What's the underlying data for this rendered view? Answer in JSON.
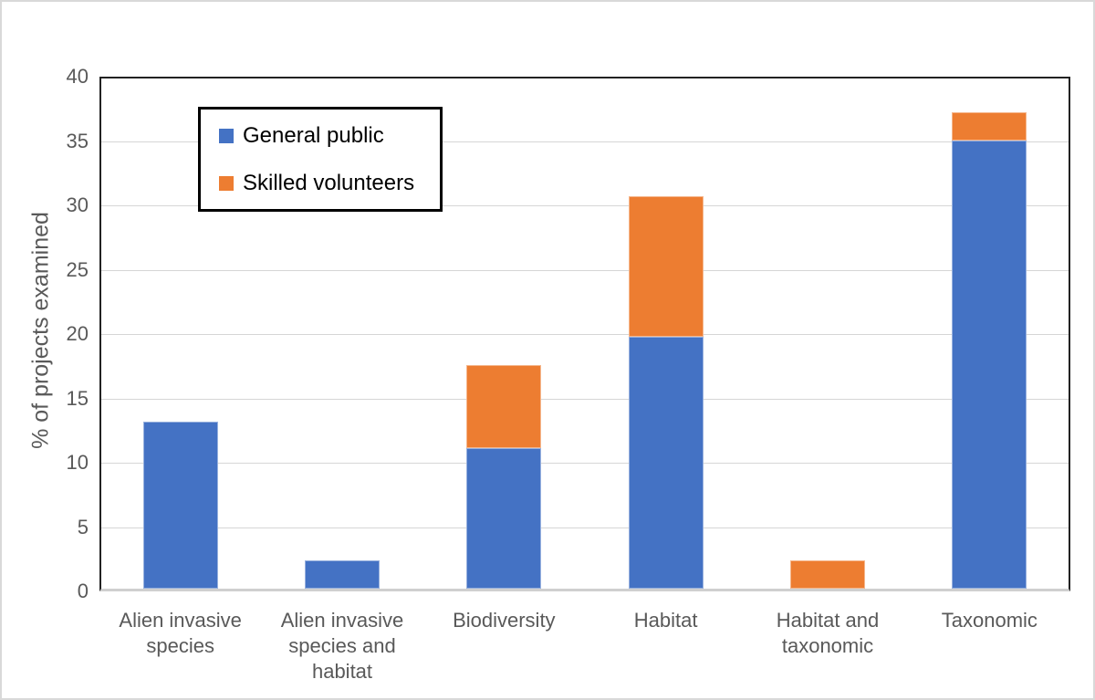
{
  "chart_data": {
    "type": "bar",
    "subtype": "stacked-vertical",
    "title": "",
    "xlabel": "",
    "ylabel": "% of projects examined",
    "ylim": [
      0,
      40
    ],
    "ytick_step": 5,
    "yticks": [
      0,
      5,
      10,
      15,
      20,
      25,
      30,
      35,
      40
    ],
    "grid": true,
    "legend_position": "inside-top-left",
    "categories": [
      "Alien invasive\nspecies",
      "Alien invasive\nspecies and\nhabitat",
      "Biodiversity",
      "Habitat",
      "Habitat and\ntaxonomic",
      "Taxonomic"
    ],
    "series": [
      {
        "name": "General public",
        "color": "#4472C4",
        "values": [
          13.0,
          2.2,
          10.9,
          19.6,
          0,
          34.8
        ]
      },
      {
        "name": "Skilled volunteers",
        "color": "#ED7D31",
        "values": [
          0,
          0,
          6.5,
          10.9,
          2.2,
          2.2
        ]
      }
    ],
    "stacked_totals": [
      13.0,
      2.2,
      17.4,
      30.4,
      2.2,
      37.0
    ]
  },
  "colors": {
    "series_blue": "#4472C4",
    "series_orange": "#ED7D31",
    "axis_text": "#595959",
    "legend_text": "#000000",
    "gridline": "#d6d6d6",
    "plot_border": "#222222",
    "baseline": "#cfcfcf",
    "outer_frame": "#d9d9d9",
    "background": "#ffffff"
  }
}
